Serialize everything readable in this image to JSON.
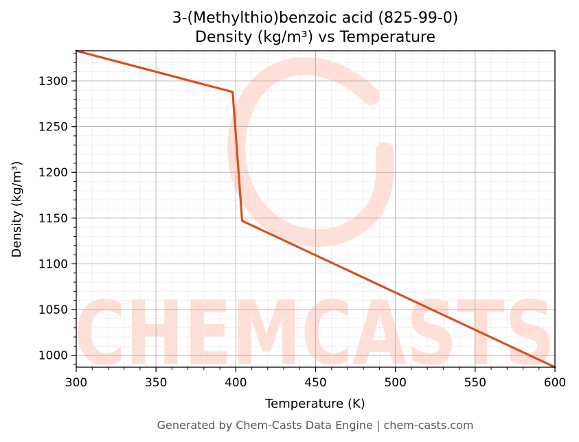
{
  "chart_data": {
    "type": "line",
    "title": "3-(Methylthio)benzoic acid (825-99-0)",
    "subtitle": "Density (kg/m³) vs Temperature",
    "xlabel": "Temperature (K)",
    "ylabel": "Density (kg/m³)",
    "xlim": [
      300,
      600
    ],
    "ylim": [
      987,
      1333
    ],
    "x_ticks": [
      300,
      350,
      400,
      450,
      500,
      550,
      600
    ],
    "y_ticks": [
      1000,
      1050,
      1100,
      1150,
      1200,
      1250,
      1300
    ],
    "grid": true,
    "series": [
      {
        "color": "#d4521f",
        "x": [
          300,
          398,
          404,
          600
        ],
        "y": [
          1333,
          1288,
          1147,
          987
        ]
      }
    ]
  },
  "watermark": {
    "text": "CHEMCASTS",
    "color": "#ffd9d0"
  },
  "footer": "Generated by Chem-Casts Data Engine | chem-casts.com"
}
